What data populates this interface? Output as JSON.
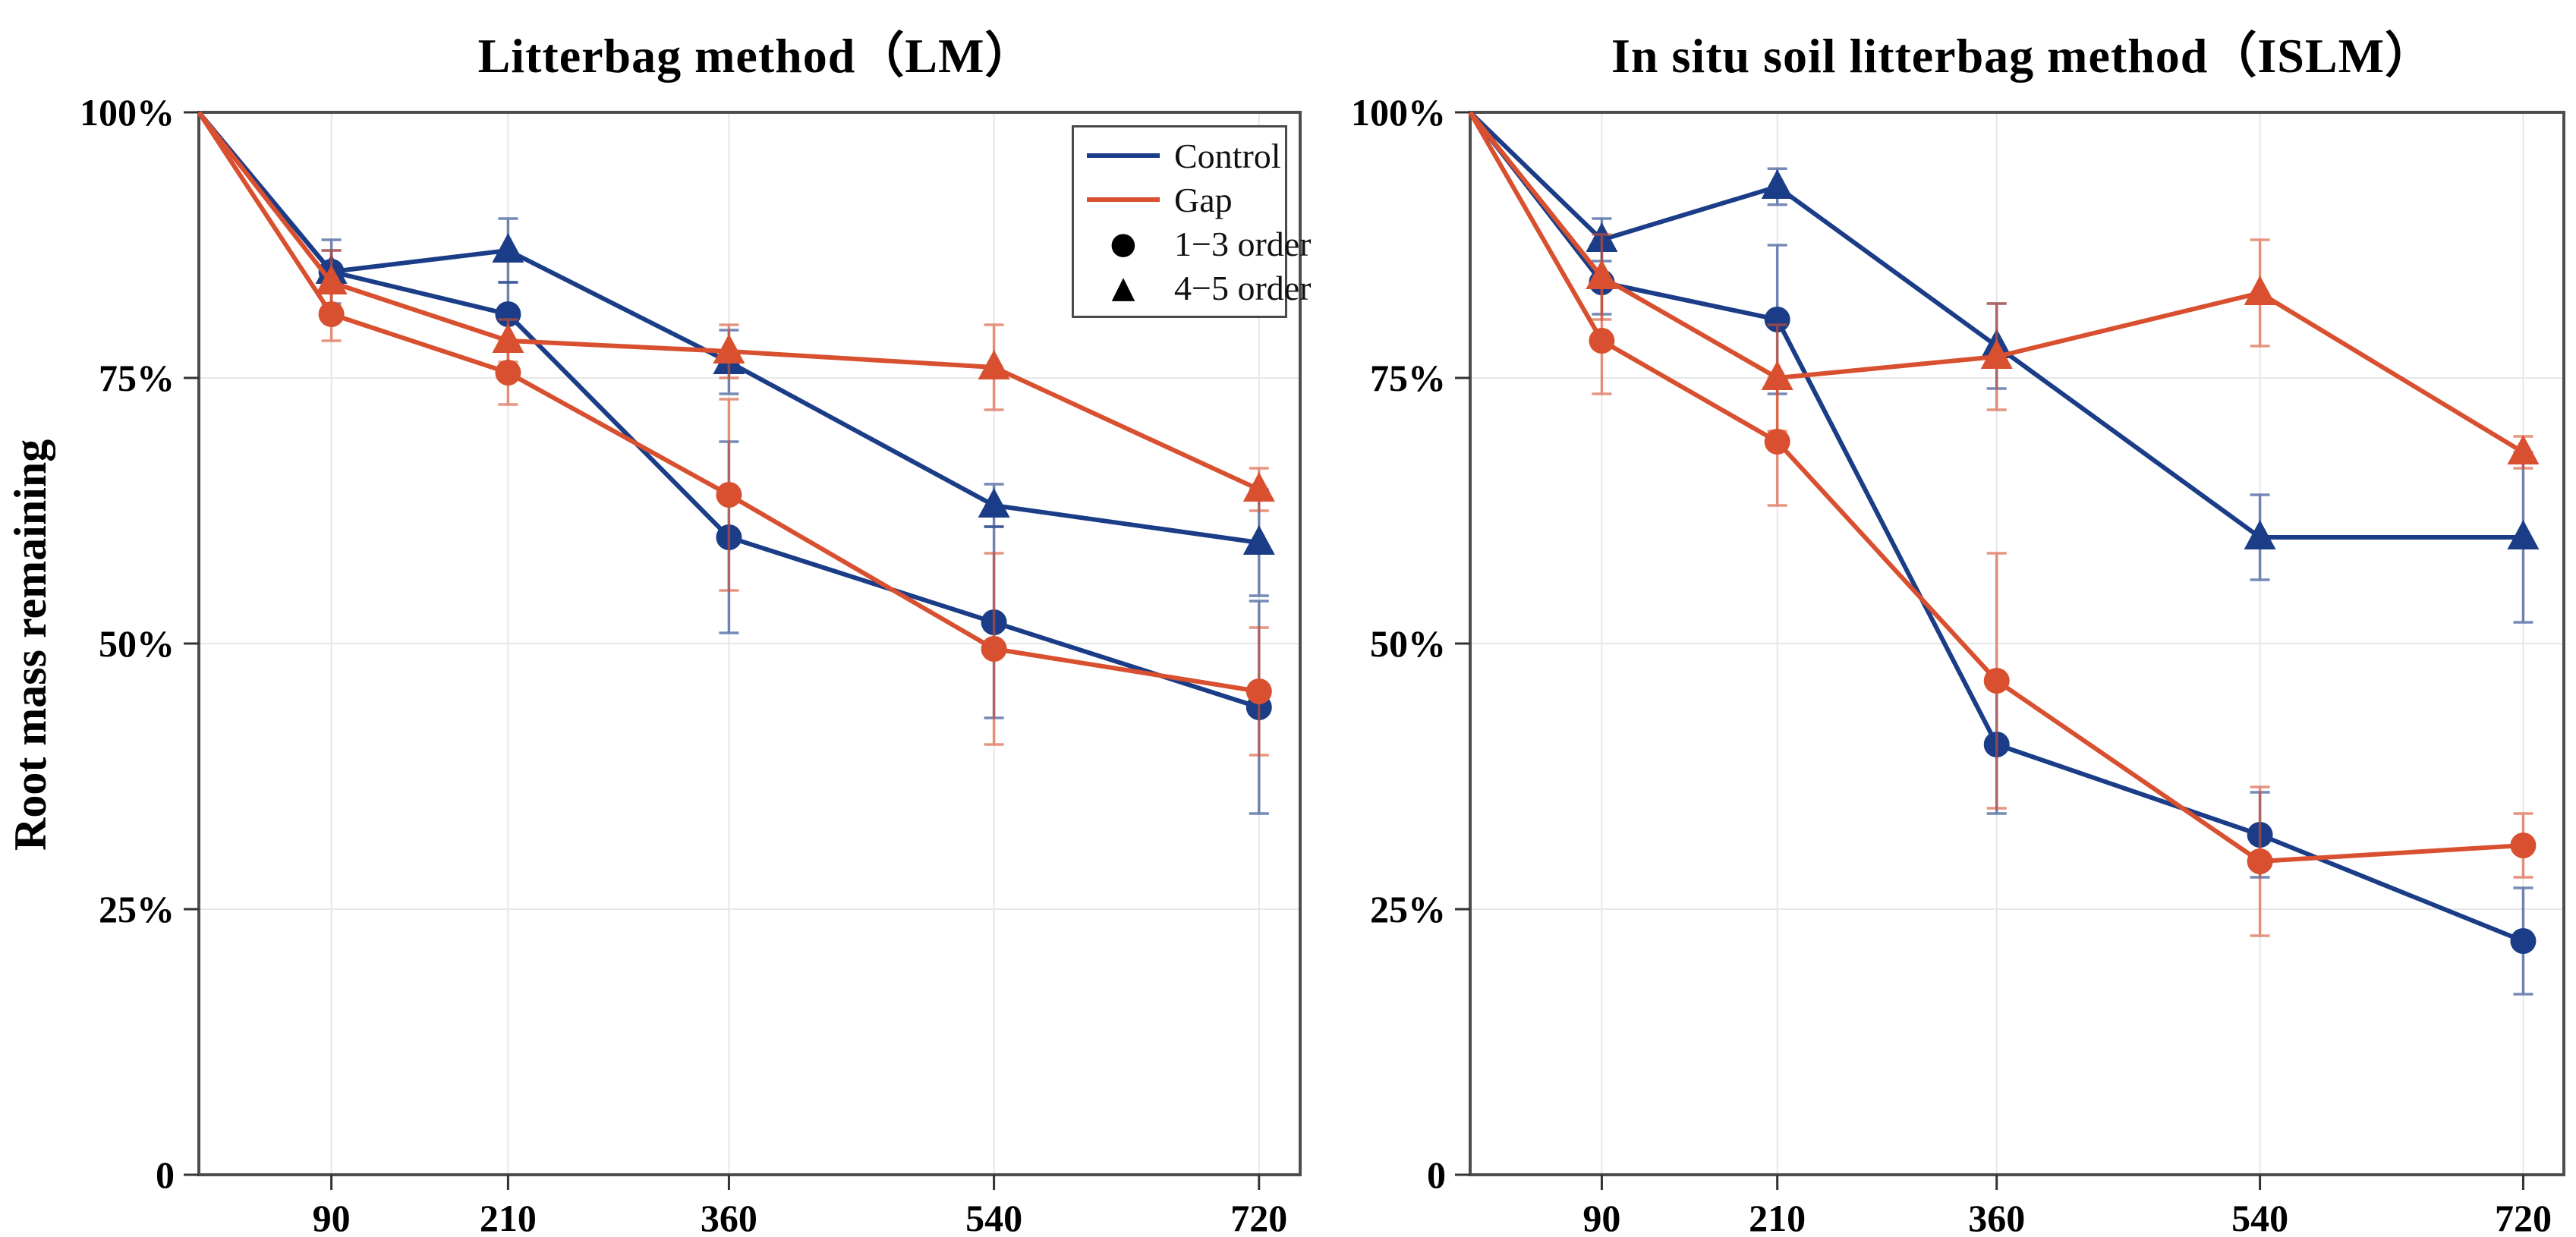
{
  "figure": {
    "y_axis_label": "Root mass remaining",
    "y_tick_labels": [
      "100%",
      "75%",
      "50%",
      "25%",
      "0"
    ],
    "y_tick_values": [
      100,
      75,
      50,
      25,
      0
    ],
    "colors": {
      "control": "#1b3d87",
      "gap": "#d8502f",
      "grid": "#e7e7e7",
      "axis": "#4d4d4d",
      "text": "#000000"
    },
    "legend": {
      "items": [
        {
          "label": "Control",
          "type": "line",
          "color": "#1b3d87"
        },
        {
          "label": "Gap",
          "type": "line",
          "color": "#d8502f"
        },
        {
          "label": "1−3 order",
          "type": "marker",
          "marker": "circle",
          "color": "#000000"
        },
        {
          "label": "4−5 order",
          "type": "marker",
          "marker": "triangle",
          "color": "#000000"
        }
      ]
    }
  },
  "chart_data": [
    {
      "type": "line",
      "title": "Litterbag method（LM）",
      "xlabel": "",
      "ylabel": "Root mass remaining",
      "x": [
        0,
        90,
        210,
        360,
        540,
        720
      ],
      "x_tick_labels": [
        "90",
        "210",
        "360",
        "540",
        "720"
      ],
      "ylim": [
        0,
        100
      ],
      "yticks": [
        0,
        25,
        50,
        75,
        100
      ],
      "grid": true,
      "legend_position": "top-right",
      "series": [
        {
          "name": "Control 1−3 order",
          "treatment": "Control",
          "order": "1−3 order",
          "color": "#1b3d87",
          "marker": "circle",
          "values": [
            100,
            85,
            81,
            60,
            52,
            44
          ],
          "errors": [
            0,
            2,
            3,
            9,
            9,
            10
          ]
        },
        {
          "name": "Control 4−5 order",
          "treatment": "Control",
          "order": "4−5 order",
          "color": "#1b3d87",
          "marker": "triangle",
          "values": [
            100,
            85,
            87,
            76.5,
            63,
            59.5
          ],
          "errors": [
            0,
            3,
            3,
            3,
            2,
            5
          ]
        },
        {
          "name": "Gap 1−3 order",
          "treatment": "Gap",
          "order": "1−3 order",
          "color": "#d8502f",
          "marker": "circle",
          "values": [
            100,
            81,
            75.5,
            64,
            49.5,
            45.5
          ],
          "errors": [
            0,
            2.5,
            3,
            9,
            9,
            6
          ]
        },
        {
          "name": "Gap 4−5 order",
          "treatment": "Gap",
          "order": "4−5 order",
          "color": "#d8502f",
          "marker": "triangle",
          "values": [
            100,
            84,
            78.5,
            77.5,
            76,
            64.5
          ],
          "errors": [
            0,
            3,
            2,
            2.5,
            4,
            2
          ]
        }
      ]
    },
    {
      "type": "line",
      "title": "In situ soil litterbag method（ISLM）",
      "xlabel": "",
      "ylabel": "Root mass remaining",
      "x": [
        0,
        90,
        210,
        360,
        540,
        720
      ],
      "x_tick_labels": [
        "90",
        "210",
        "360",
        "540",
        "720"
      ],
      "ylim": [
        0,
        100
      ],
      "yticks": [
        0,
        25,
        50,
        75,
        100
      ],
      "grid": true,
      "legend_position": "none",
      "series": [
        {
          "name": "Control 1−3 order",
          "treatment": "Control",
          "order": "1−3 order",
          "color": "#1b3d87",
          "marker": "circle",
          "values": [
            100,
            84,
            80.5,
            40.5,
            32,
            22
          ],
          "errors": [
            0,
            3,
            7,
            6.5,
            4,
            5
          ]
        },
        {
          "name": "Control 4−5 order",
          "treatment": "Control",
          "order": "4−5 order",
          "color": "#1b3d87",
          "marker": "triangle",
          "values": [
            100,
            88,
            93,
            78,
            60,
            60
          ],
          "errors": [
            0,
            2,
            1.7,
            4,
            4,
            8
          ]
        },
        {
          "name": "Gap 1−3 order",
          "treatment": "Gap",
          "order": "1−3 order",
          "color": "#d8502f",
          "marker": "circle",
          "values": [
            100,
            78.5,
            69,
            46.5,
            29.5,
            31
          ],
          "errors": [
            0,
            5,
            6,
            12,
            7,
            3
          ]
        },
        {
          "name": "Gap 4−5 order",
          "treatment": "Gap",
          "order": "4−5 order",
          "color": "#d8502f",
          "marker": "triangle",
          "values": [
            100,
            84.5,
            75,
            77,
            83,
            68
          ],
          "errors": [
            0,
            4,
            5,
            5,
            5,
            1.5
          ]
        }
      ]
    }
  ]
}
